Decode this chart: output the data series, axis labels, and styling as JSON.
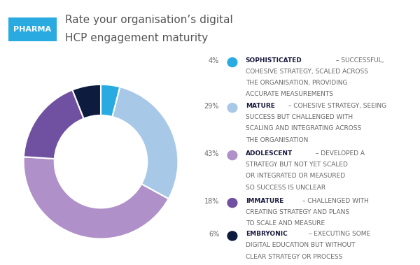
{
  "title_line1": "Rate your organisation’s digital",
  "title_line2": "HCP engagement maturity",
  "pharma_label": "PHARMA",
  "pharma_bg": "#29abe2",
  "pharma_text": "#ffffff",
  "title_color": "#555555",
  "slices": [
    {
      "label": "SOPHISTICATED",
      "pct": 4,
      "color": "#29abe2",
      "full_text": "SOPHISTICATED – SUCCESSFUL,\nCOHESIVE STRATEGY, SCALED ACROSS\nTHE ORGANISATION, PROVIDING\nACCURATE MEASUREMENTS"
    },
    {
      "label": "MATURE",
      "pct": 29,
      "color": "#a8c8e8",
      "full_text": "MATURE – COHESIVE STRATEGY, SEEING\nSUCCESS BUT CHALLENGED WITH\nSCALING AND INTEGRATING ACROSS\nTHE ORGANISATION"
    },
    {
      "label": "ADOLESCENT",
      "pct": 43,
      "color": "#b090c8",
      "full_text": "ADOLESCENT – DEVELOPED A\nSTRATEGY BUT NOT YET SCALED\nOR INTEGRATED OR MEASURED\nSO SUCCESS IS UNCLEAR"
    },
    {
      "label": "IMMATURE",
      "pct": 18,
      "color": "#7050a0",
      "full_text": "IMMATURE – CHALLENGED WITH\nCREATING STRATEGY AND PLANS\nTO SCALE AND MEASURE"
    },
    {
      "label": "EMBRYONIC",
      "pct": 6,
      "color": "#0d1b3e",
      "full_text": "EMBRYONIC – EXECUTING SOME\nDIGITAL EDUCATION BUT WITHOUT\nCLEAR STRATEGY OR PROCESS"
    }
  ],
  "donut_width": 0.4,
  "bg_color": "#ffffff",
  "legend_pct_color": "#666666",
  "legend_label_color": "#1a1a3e",
  "legend_desc_color": "#666666",
  "startangle": 90,
  "font_family": "DejaVu Sans"
}
